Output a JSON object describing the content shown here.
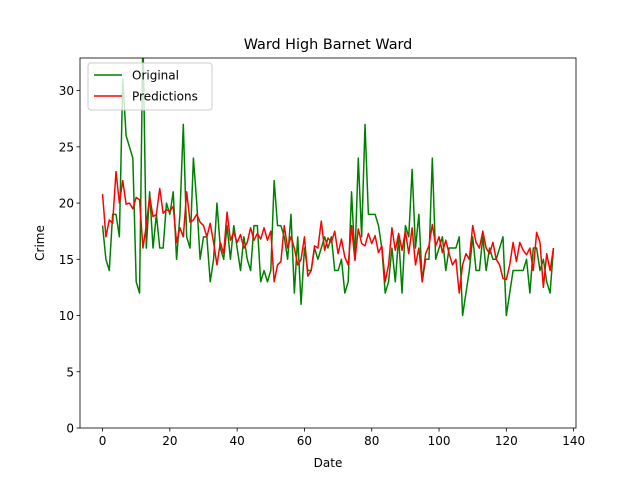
{
  "chart_data": {
    "type": "line",
    "title": "Ward High Barnet Ward",
    "x_label": "Date",
    "y_label": "Crime",
    "x": [
      0,
      1,
      2,
      3,
      4,
      5,
      6,
      7,
      8,
      9,
      10,
      11,
      12,
      13,
      14,
      15,
      16,
      17,
      18,
      19,
      20,
      21,
      22,
      23,
      24,
      25,
      26,
      27,
      28,
      29,
      30,
      31,
      32,
      33,
      34,
      35,
      36,
      37,
      38,
      39,
      40,
      41,
      42,
      43,
      44,
      45,
      46,
      47,
      48,
      49,
      50,
      51,
      52,
      53,
      54,
      55,
      56,
      57,
      58,
      59,
      60,
      61,
      62,
      63,
      64,
      65,
      66,
      67,
      68,
      69,
      70,
      71,
      72,
      73,
      74,
      75,
      76,
      77,
      78,
      79,
      80,
      81,
      82,
      83,
      84,
      85,
      86,
      87,
      88,
      89,
      90,
      91,
      92,
      93,
      94,
      95,
      96,
      97,
      98,
      99,
      100,
      101,
      102,
      103,
      104,
      105,
      106,
      107,
      108,
      109,
      110,
      111,
      112,
      113,
      114,
      115,
      116,
      117,
      118,
      119,
      120,
      121,
      122,
      123,
      124,
      125,
      126,
      127,
      128,
      129,
      130,
      131,
      132,
      133,
      134
    ],
    "series": [
      {
        "name": "Original",
        "color": "#008000",
        "values": [
          18,
          15,
          14,
          19,
          19,
          17,
          31,
          26,
          25,
          24,
          13,
          12,
          35,
          16,
          21,
          16,
          19,
          16,
          16,
          20,
          19,
          21,
          15,
          19,
          27,
          17,
          16,
          24,
          20,
          15,
          17,
          17,
          13,
          15,
          20,
          16,
          15,
          18,
          15,
          18,
          16,
          14,
          17,
          15,
          14,
          18,
          18,
          13,
          14,
          13,
          14,
          22,
          18,
          18,
          17,
          15,
          19,
          12,
          17,
          11,
          16,
          14,
          14,
          16,
          15,
          16,
          17,
          16,
          17,
          14,
          14,
          15,
          12,
          13,
          21,
          15,
          24,
          17,
          27,
          19,
          19,
          19,
          18,
          16,
          12,
          13,
          16,
          13,
          17,
          12,
          18,
          17,
          23,
          16,
          19,
          13,
          15,
          15,
          24,
          15,
          16,
          17,
          14,
          16,
          16,
          16,
          17,
          10,
          12,
          14,
          17,
          14,
          14,
          17,
          14,
          16,
          15,
          15,
          16,
          17,
          10,
          12,
          14,
          14,
          14,
          14,
          15,
          12,
          16,
          16,
          14,
          15,
          13,
          12,
          16
        ]
      },
      {
        "name": "Predictions",
        "color": "#ff0000",
        "values": [
          20.8,
          17,
          18.5,
          18.2,
          22.8,
          20,
          22,
          19.9,
          20,
          19.5,
          20.5,
          20.3,
          16,
          18,
          20.6,
          18.8,
          19,
          21.3,
          19.1,
          19.4,
          19.3,
          19.7,
          16.5,
          17.8,
          17,
          21,
          18.3,
          18.5,
          19,
          18.3,
          18,
          17,
          18.2,
          16.5,
          14.5,
          16.5,
          15.5,
          19.2,
          16.7,
          17.4,
          16.5,
          17.2,
          16,
          16.5,
          17.8,
          16.7,
          17.3,
          16.8,
          17.8,
          16.7,
          17.5,
          13,
          14.5,
          14.8,
          18,
          16,
          17,
          16,
          14.5,
          15,
          17,
          13.5,
          14,
          16.2,
          16,
          18.4,
          15.8,
          16.9,
          16.5,
          17.5,
          15.5,
          16.8,
          15.2,
          14.5,
          18,
          14.9,
          17.7,
          16.4,
          16.2,
          17.3,
          16.4,
          17.1,
          15.6,
          16.2,
          13,
          14.5,
          17.8,
          15.8,
          17.3,
          15.8,
          17.5,
          15.5,
          17.8,
          14.5,
          16,
          13,
          15.5,
          16.2,
          18.1,
          16.2,
          17,
          15.6,
          16.7,
          15.5,
          14.5,
          15,
          12,
          14.5,
          15.5,
          15,
          18,
          16.5,
          16,
          17.5,
          16,
          15.5,
          16.5,
          15,
          14.5,
          13.3,
          13.2,
          14.5,
          16.5,
          14.8,
          16.5,
          15.8,
          15.4,
          16,
          14,
          17.4,
          16.5,
          12.5,
          15.5,
          14,
          16
        ]
      }
    ],
    "xlim": [
      -6.7,
      140.7
    ],
    "xticks": [
      0,
      20,
      40,
      60,
      80,
      100,
      120,
      140
    ],
    "ylim": [
      0,
      32.9
    ],
    "yticks": [
      0,
      5,
      10,
      15,
      20,
      25,
      30
    ],
    "legend": "upper left"
  }
}
